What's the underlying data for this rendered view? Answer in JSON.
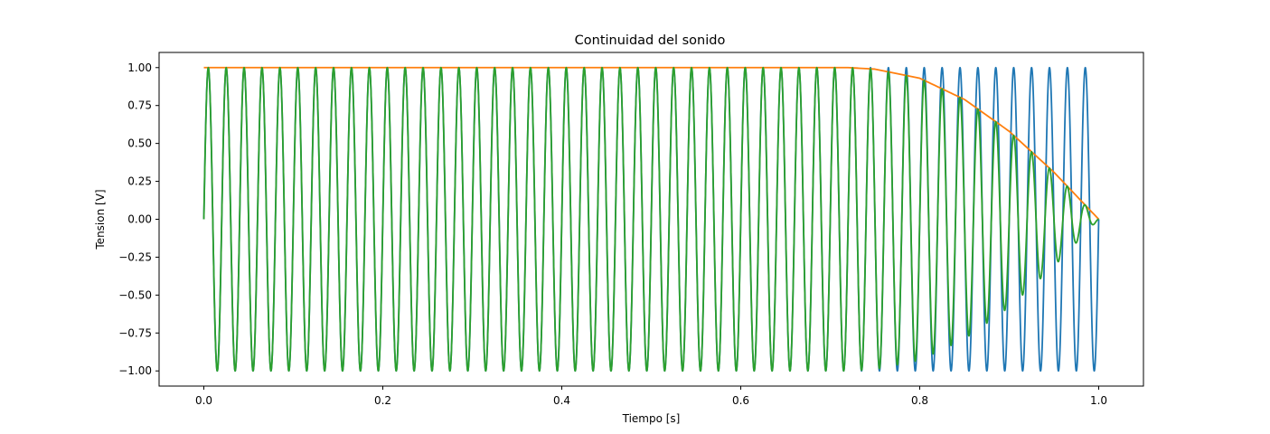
{
  "chart_data": {
    "type": "line",
    "title": "Continuidad del sonido",
    "xlabel": "Tiempo [s]",
    "ylabel": "Tension [V]",
    "xlim": [
      -0.05,
      1.05
    ],
    "ylim": [
      -1.1,
      1.1
    ],
    "x_ticks": [
      "0.0",
      "0.2",
      "0.4",
      "0.6",
      "0.8",
      "1.0"
    ],
    "y_ticks": [
      "−1.00",
      "−0.75",
      "−0.50",
      "−0.25",
      "0.00",
      "0.25",
      "0.50",
      "0.75",
      "1.00"
    ],
    "grid": false,
    "series": [
      {
        "color": "#1f77b4",
        "description": "sine wave, amplitude 1, 50 cycles over 0 to 1 s",
        "function": "sin(2*pi*50*t)",
        "x_range": [
          0,
          1
        ]
      },
      {
        "color": "#ff7f0e",
        "description": "envelope: constant 1.0 until t = 0.72 s, then smooth fade to 0 at t = 1.0 s",
        "points": [
          [
            0,
            1
          ],
          [
            0.72,
            1
          ],
          [
            0.75,
            0.99
          ],
          [
            0.8,
            0.93
          ],
          [
            0.85,
            0.79
          ],
          [
            0.9,
            0.58
          ],
          [
            0.95,
            0.31
          ],
          [
            1.0,
            0
          ]
        ]
      },
      {
        "color": "#2ca02c",
        "description": "sine wave multiplied by the envelope",
        "function": "envelope(t) * sin(2*pi*50*t)",
        "x_range": [
          0,
          1
        ]
      }
    ]
  }
}
